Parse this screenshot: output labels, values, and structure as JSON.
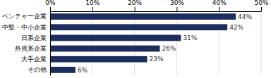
{
  "chart_data": {
    "type": "bar",
    "orientation": "horizontal",
    "categories": [
      "ベンチャー企業",
      "中堅・中小企業",
      "日系企業",
      "外資系企業",
      "大手企業",
      "その他"
    ],
    "values": [
      44,
      42,
      31,
      26,
      23,
      6
    ],
    "value_labels": [
      "44%",
      "42%",
      "31%",
      "26%",
      "23%",
      "6%"
    ],
    "color": "#1c2d5e",
    "xlim": [
      0,
      50
    ],
    "xticks": [
      {
        "value": 0,
        "label": "0%"
      },
      {
        "value": 10,
        "label": "10%"
      },
      {
        "value": 20,
        "label": "20%"
      },
      {
        "value": 30,
        "label": "30%"
      },
      {
        "value": 40,
        "label": "40%"
      },
      {
        "value": 50,
        "label": "50%"
      }
    ],
    "grid": true,
    "data_labels": true
  }
}
